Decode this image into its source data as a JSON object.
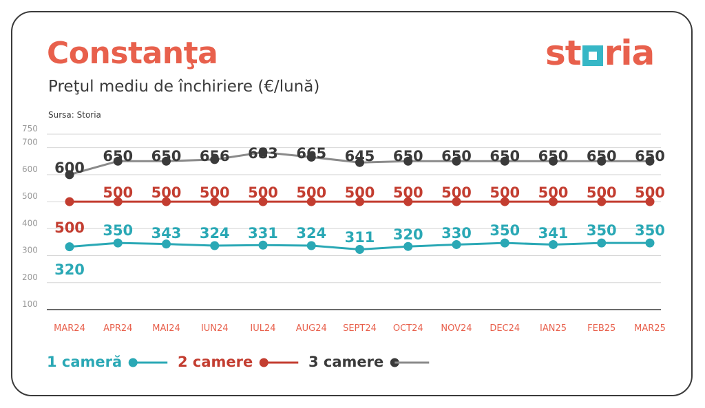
{
  "header": {
    "title": "Constanţa",
    "subtitle": "Preţul mediu de închiriere (€/lună)",
    "source": "Sursa: Storia",
    "logo_text_left": "st",
    "logo_text_right": "ria"
  },
  "colors": {
    "accent": "#e8604c",
    "series_1": "#2aa8b5",
    "series_2": "#c33d30",
    "series_3": "#8a8a8a",
    "dots_3": "#3a3a3a"
  },
  "chart_data": {
    "type": "line",
    "categories": [
      "MAR24",
      "APR24",
      "MAI24",
      "IUN24",
      "IUL24",
      "AUG24",
      "SEPT24",
      "OCT24",
      "NOV24",
      "DEC24",
      "IAN25",
      "FEB25",
      "MAR25"
    ],
    "yticks": [
      100,
      200,
      300,
      400,
      500,
      600,
      700,
      750
    ],
    "ylim": [
      100,
      750
    ],
    "grid": true,
    "legend_position": "bottom-left",
    "series": [
      {
        "name": "1 cameră",
        "values": [
          320,
          350,
          343,
          324,
          331,
          324,
          311,
          320,
          330,
          350,
          341,
          350,
          350
        ],
        "plot_values": [
          333,
          347,
          343,
          337,
          339,
          337,
          323,
          334,
          341,
          347,
          341,
          347,
          347
        ]
      },
      {
        "name": "2 camere",
        "values": [
          500,
          500,
          500,
          500,
          500,
          500,
          500,
          500,
          500,
          500,
          500,
          500,
          500
        ]
      },
      {
        "name": "3 camere",
        "values": [
          600,
          650,
          650,
          656,
          683,
          665,
          645,
          650,
          650,
          650,
          650,
          650,
          650
        ]
      }
    ]
  }
}
